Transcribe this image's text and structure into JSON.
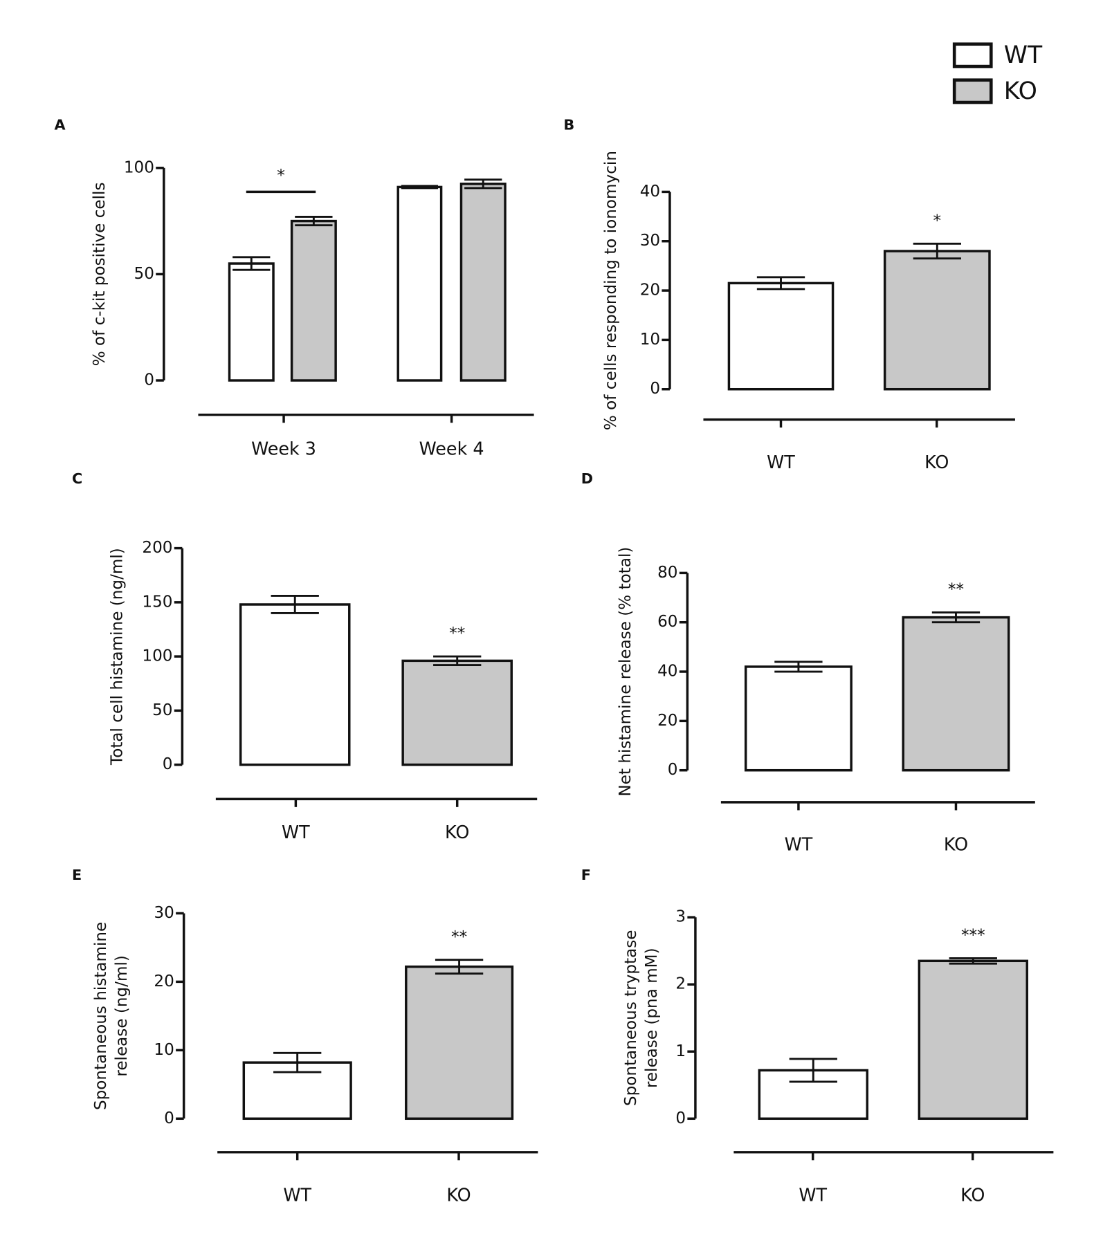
{
  "chart_data": [
    {
      "type": "bar",
      "panel": "A",
      "ylabel": "% of c-kit positive cells",
      "categories": [
        "Week 3",
        "Week 4"
      ],
      "series": [
        {
          "name": "WT",
          "color": "#ffffff",
          "values": [
            55,
            91
          ],
          "errors": [
            3,
            0.5
          ]
        },
        {
          "name": "KO",
          "color": "#c8c8c8",
          "values": [
            75,
            92.5
          ],
          "errors": [
            2,
            2
          ]
        }
      ],
      "annotation": "*",
      "ylim": [
        0,
        100
      ],
      "yticks": [
        0,
        50,
        100
      ]
    },
    {
      "type": "bar",
      "panel": "B",
      "ylabel": "% of cells responding to ionomycin",
      "categories": [
        "WT",
        "KO"
      ],
      "values": [
        21.5,
        28
      ],
      "errors": [
        1.2,
        1.5
      ],
      "colors": [
        "#ffffff",
        "#c8c8c8"
      ],
      "annotation": "*",
      "ylim": [
        0,
        40
      ],
      "yticks": [
        0,
        10,
        20,
        30,
        40
      ]
    },
    {
      "type": "bar",
      "panel": "C",
      "ylabel": "Total cell histamine (ng/ml)",
      "categories": [
        "WT",
        "KO"
      ],
      "values": [
        148,
        96
      ],
      "errors": [
        8,
        4
      ],
      "colors": [
        "#ffffff",
        "#c8c8c8"
      ],
      "annotation": "**",
      "ylim": [
        0,
        200
      ],
      "yticks": [
        0,
        50,
        100,
        150,
        200
      ]
    },
    {
      "type": "bar",
      "panel": "D",
      "ylabel": "Net histamine release (% total)",
      "categories": [
        "WT",
        "KO"
      ],
      "values": [
        42,
        62
      ],
      "errors": [
        2,
        2
      ],
      "colors": [
        "#ffffff",
        "#c8c8c8"
      ],
      "annotation": "**",
      "ylim": [
        0,
        80
      ],
      "yticks": [
        0,
        20,
        40,
        60,
        80
      ]
    },
    {
      "type": "bar",
      "panel": "E",
      "ylabel": [
        "Spontaneous histamine",
        "release (ng/ml)"
      ],
      "categories": [
        "WT",
        "KO"
      ],
      "values": [
        8.2,
        22.2
      ],
      "errors": [
        1.4,
        1
      ],
      "colors": [
        "#ffffff",
        "#c8c8c8"
      ],
      "annotation": "**",
      "ylim": [
        0,
        30
      ],
      "yticks": [
        0,
        10,
        20,
        30
      ]
    },
    {
      "type": "bar",
      "panel": "F",
      "ylabel": [
        "Spontaneous tryptase",
        "release (pna mM)"
      ],
      "categories": [
        "WT",
        "KO"
      ],
      "values": [
        0.72,
        2.35
      ],
      "errors": [
        0.17,
        0.04
      ],
      "colors": [
        "#ffffff",
        "#c8c8c8"
      ],
      "annotation": "***",
      "ylim": [
        0,
        3
      ],
      "yticks": [
        0,
        1,
        2,
        3
      ]
    }
  ]
}
